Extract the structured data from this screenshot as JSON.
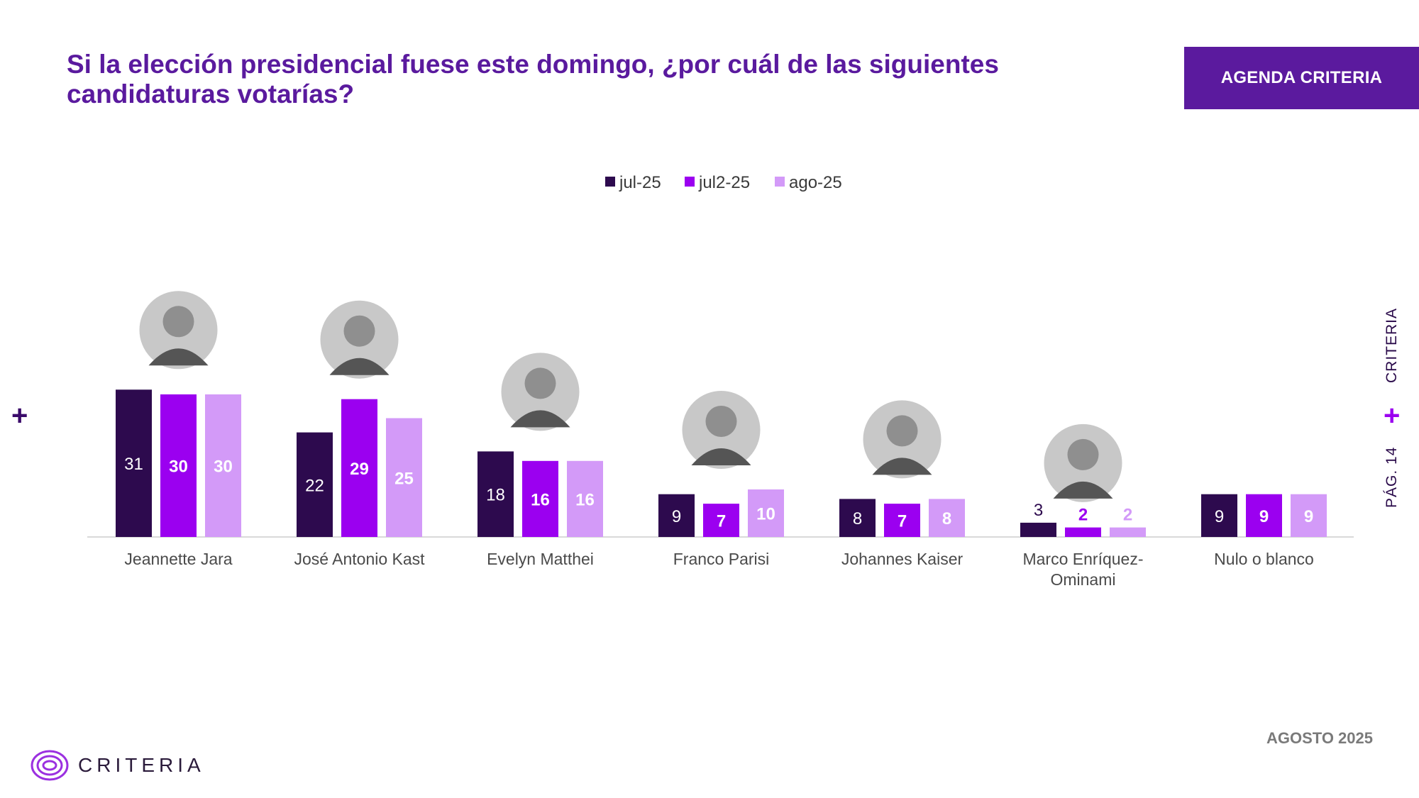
{
  "header": {
    "title": "Si la elección presidencial fuese este domingo, ¿por cuál de las siguientes candidaturas votarías?",
    "badge": "AGENDA CRITERIA"
  },
  "side": {
    "brand": "CRITERIA",
    "page": "PÁG. 14"
  },
  "footer": {
    "date": "AGOSTO 2025",
    "logo_text": "CRITERIA"
  },
  "colors": {
    "jul25": "#2d0a4e",
    "jul2_25": "#9b00f0",
    "ago25": "#d39af8",
    "brand": "#5b1a9e"
  },
  "chart_data": {
    "type": "bar",
    "categories": [
      "Jeannette Jara",
      "José Antonio Kast",
      "Evelyn Matthei",
      "Franco Parisi",
      "Johannes Kaiser",
      "Marco Enríquez-Ominami",
      "Nulo o blanco"
    ],
    "series": [
      {
        "name": "jul-25",
        "values": [
          31,
          22,
          18,
          9,
          8,
          3,
          9
        ]
      },
      {
        "name": "jul2-25",
        "values": [
          30,
          29,
          16,
          7,
          7,
          2,
          9
        ]
      },
      {
        "name": "ago-25",
        "values": [
          30,
          25,
          16,
          10,
          8,
          2,
          9
        ]
      }
    ],
    "photos": [
      "Jeannette Jara",
      "José Antonio Kast",
      "Evelyn Matthei",
      "Franco Parisi",
      "Johannes Kaiser",
      "Marco Enríquez-Ominami"
    ],
    "legend_position": "top-center",
    "grid": false
  }
}
